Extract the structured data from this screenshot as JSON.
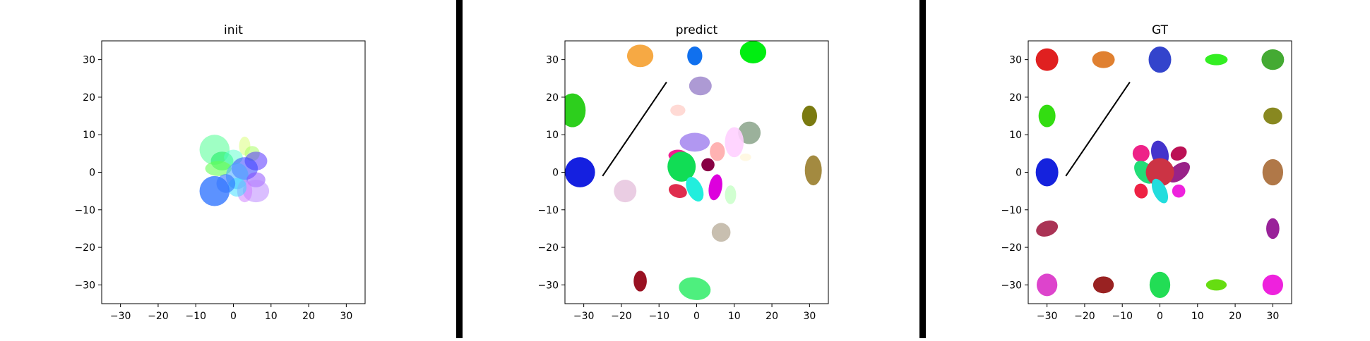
{
  "chart_data": [
    {
      "type": "scatter",
      "title": "init",
      "xlim": [
        -35,
        35
      ],
      "ylim": [
        -35,
        35
      ],
      "xticks": [
        -30,
        -20,
        -10,
        0,
        10,
        20,
        30
      ],
      "yticks": [
        -30,
        -20,
        -10,
        0,
        10,
        20,
        30
      ],
      "grid": false,
      "ellipses": [
        {
          "cx": -5,
          "cy": 6,
          "w": 8,
          "h": 8,
          "angle": 0,
          "color": "#7fffb0",
          "alpha": 0.75
        },
        {
          "cx": -3,
          "cy": 3,
          "w": 6,
          "h": 5,
          "angle": 0,
          "color": "#22ee66",
          "alpha": 0.6
        },
        {
          "cx": -4,
          "cy": 1,
          "w": 7,
          "h": 4,
          "angle": 0,
          "color": "#66ff55",
          "alpha": 0.6
        },
        {
          "cx": 3,
          "cy": 7,
          "w": 3,
          "h": 5,
          "angle": 0,
          "color": "#ddff88",
          "alpha": 0.6
        },
        {
          "cx": 5,
          "cy": 5,
          "w": 4,
          "h": 4,
          "angle": 0,
          "color": "#aaff66",
          "alpha": 0.55
        },
        {
          "cx": 0,
          "cy": 4,
          "w": 5,
          "h": 4,
          "angle": 0,
          "color": "#55ffcc",
          "alpha": 0.5
        },
        {
          "cx": 6,
          "cy": 3,
          "w": 6,
          "h": 5,
          "angle": 0,
          "color": "#5533ff",
          "alpha": 0.55
        },
        {
          "cx": 3,
          "cy": 1,
          "w": 7,
          "h": 6,
          "angle": 0,
          "color": "#3344ff",
          "alpha": 0.55
        },
        {
          "cx": 1,
          "cy": -1,
          "w": 6,
          "h": 7,
          "angle": 0,
          "color": "#44aaff",
          "alpha": 0.55
        },
        {
          "cx": 6,
          "cy": -2,
          "w": 5,
          "h": 4,
          "angle": 0,
          "color": "#8844ff",
          "alpha": 0.5
        },
        {
          "cx": 6,
          "cy": -5,
          "w": 7,
          "h": 6,
          "angle": 0,
          "color": "#bb88ff",
          "alpha": 0.55
        },
        {
          "cx": 3,
          "cy": -5,
          "w": 4,
          "h": 6,
          "angle": 0,
          "color": "#cc77ff",
          "alpha": 0.5
        },
        {
          "cx": 1,
          "cy": -4,
          "w": 5,
          "h": 5,
          "angle": 0,
          "color": "#33ddff",
          "alpha": 0.5
        },
        {
          "cx": -2,
          "cy": -3,
          "w": 5,
          "h": 5,
          "angle": 0,
          "color": "#2266ff",
          "alpha": 0.55
        },
        {
          "cx": -5,
          "cy": -5,
          "w": 8,
          "h": 8,
          "angle": 0,
          "color": "#3377ff",
          "alpha": 0.8
        }
      ],
      "lines": []
    },
    {
      "type": "scatter",
      "title": "predict",
      "xlim": [
        -35,
        35
      ],
      "ylim": [
        -35,
        35
      ],
      "xticks": [
        -30,
        -20,
        -10,
        0,
        10,
        20,
        30
      ],
      "yticks": [
        -30,
        -20,
        -10,
        0,
        10,
        20,
        30
      ],
      "grid": false,
      "ellipses": [
        {
          "cx": -15,
          "cy": 31,
          "w": 7,
          "h": 6,
          "angle": 0,
          "color": "#f5a030",
          "alpha": 0.9
        },
        {
          "cx": -0.5,
          "cy": 31,
          "w": 4,
          "h": 5,
          "angle": 0,
          "color": "#1070ee",
          "alpha": 1
        },
        {
          "cx": 15,
          "cy": 32,
          "w": 7,
          "h": 6,
          "angle": 0,
          "color": "#00ee11",
          "alpha": 1
        },
        {
          "cx": 1,
          "cy": 23,
          "w": 6,
          "h": 5,
          "angle": 0,
          "color": "#a48fcf",
          "alpha": 0.9
        },
        {
          "cx": -33,
          "cy": 16.5,
          "w": 7,
          "h": 9,
          "angle": 0,
          "color": "#22cc11",
          "alpha": 0.95
        },
        {
          "cx": -5,
          "cy": 16.5,
          "w": 4,
          "h": 3,
          "angle": 0,
          "color": "#ffd6d0",
          "alpha": 0.9
        },
        {
          "cx": 30,
          "cy": 15,
          "w": 4,
          "h": 5.5,
          "angle": 0,
          "color": "#7a7a10",
          "alpha": 1
        },
        {
          "cx": 14,
          "cy": 10.5,
          "w": 6,
          "h": 6,
          "angle": 0,
          "color": "#90a890",
          "alpha": 0.9
        },
        {
          "cx": 10,
          "cy": 8,
          "w": 5,
          "h": 8,
          "angle": 0,
          "color": "#ffd0ff",
          "alpha": 0.9
        },
        {
          "cx": -0.5,
          "cy": 8,
          "w": 8,
          "h": 5,
          "angle": 0,
          "color": "#a88cf0",
          "alpha": 0.9
        },
        {
          "cx": 5.5,
          "cy": 5.5,
          "w": 4,
          "h": 5,
          "angle": 0,
          "color": "#ffaaaa",
          "alpha": 0.9
        },
        {
          "cx": 13,
          "cy": 4,
          "w": 3,
          "h": 2,
          "angle": 0,
          "color": "#fff7e0",
          "alpha": 0.9
        },
        {
          "cx": -5,
          "cy": 4.5,
          "w": 5,
          "h": 3,
          "angle": 0,
          "color": "#ee1188",
          "alpha": 0.95
        },
        {
          "cx": -4,
          "cy": 1.5,
          "w": 7.5,
          "h": 8,
          "angle": 0,
          "color": "#11dd55",
          "alpha": 1
        },
        {
          "cx": 3,
          "cy": 2,
          "w": 3.5,
          "h": 3.5,
          "angle": 0,
          "color": "#880044",
          "alpha": 1
        },
        {
          "cx": -31,
          "cy": 0,
          "w": 8,
          "h": 8,
          "angle": 0,
          "color": "#1520e0",
          "alpha": 1
        },
        {
          "cx": 31,
          "cy": 0.5,
          "w": 4.5,
          "h": 8,
          "angle": 0,
          "color": "#a38a40",
          "alpha": 1
        },
        {
          "cx": -19,
          "cy": -5,
          "w": 6,
          "h": 6,
          "angle": 0,
          "color": "#e8c8e0",
          "alpha": 0.9
        },
        {
          "cx": -5,
          "cy": -5,
          "w": 5,
          "h": 3.5,
          "angle": -20,
          "color": "#dd2244",
          "alpha": 0.95
        },
        {
          "cx": -0.5,
          "cy": -4.5,
          "w": 4,
          "h": 7,
          "angle": 25,
          "color": "#22eedd",
          "alpha": 1
        },
        {
          "cx": 5,
          "cy": -4,
          "w": 3.5,
          "h": 7,
          "angle": -10,
          "color": "#dd00dd",
          "alpha": 1
        },
        {
          "cx": 9,
          "cy": -6,
          "w": 3,
          "h": 5,
          "angle": 0,
          "color": "#ccffcc",
          "alpha": 0.9
        },
        {
          "cx": 6.5,
          "cy": -16,
          "w": 5,
          "h": 5,
          "angle": 0,
          "color": "#c8bfb0",
          "alpha": 1
        },
        {
          "cx": -15,
          "cy": -29,
          "w": 3.5,
          "h": 5.5,
          "angle": 0,
          "color": "#991122",
          "alpha": 1
        },
        {
          "cx": -0.5,
          "cy": -31,
          "w": 8.5,
          "h": 6,
          "angle": -10,
          "color": "#44ee77",
          "alpha": 0.95
        }
      ],
      "lines": [
        {
          "x": [
            -25,
            -8
          ],
          "y": [
            -1,
            24
          ],
          "color": "#000000"
        }
      ]
    },
    {
      "type": "scatter",
      "title": "GT",
      "xlim": [
        -35,
        35
      ],
      "ylim": [
        -35,
        35
      ],
      "xticks": [
        -30,
        -20,
        -10,
        0,
        10,
        20,
        30
      ],
      "yticks": [
        -30,
        -20,
        -10,
        0,
        10,
        20,
        30
      ],
      "grid": false,
      "ellipses": [
        {
          "cx": -30,
          "cy": 30,
          "w": 6,
          "h": 6,
          "angle": 0,
          "color": "#e02020",
          "alpha": 1
        },
        {
          "cx": -15,
          "cy": 30,
          "w": 6,
          "h": 4.5,
          "angle": 0,
          "color": "#e08030",
          "alpha": 1
        },
        {
          "cx": 0,
          "cy": 30,
          "w": 6,
          "h": 7,
          "angle": 0,
          "color": "#3344cc",
          "alpha": 1
        },
        {
          "cx": 15,
          "cy": 30,
          "w": 6,
          "h": 3,
          "angle": 0,
          "color": "#33ee22",
          "alpha": 1
        },
        {
          "cx": 30,
          "cy": 30,
          "w": 6,
          "h": 5.5,
          "angle": 0,
          "color": "#44aa33",
          "alpha": 1
        },
        {
          "cx": -30,
          "cy": 15,
          "w": 4.5,
          "h": 6,
          "angle": 0,
          "color": "#33dd11",
          "alpha": 1
        },
        {
          "cx": 30,
          "cy": 15,
          "w": 5,
          "h": 4.5,
          "angle": 0,
          "color": "#888820",
          "alpha": 1
        },
        {
          "cx": -30,
          "cy": 0,
          "w": 6,
          "h": 7.5,
          "angle": 0,
          "color": "#1522dd",
          "alpha": 1
        },
        {
          "cx": 30,
          "cy": 0,
          "w": 5.5,
          "h": 7,
          "angle": 0,
          "color": "#b07848",
          "alpha": 1
        },
        {
          "cx": -30,
          "cy": -15,
          "w": 6,
          "h": 4,
          "angle": 20,
          "color": "#aa3355",
          "alpha": 1
        },
        {
          "cx": 30,
          "cy": -15,
          "w": 3.5,
          "h": 5.5,
          "angle": 0,
          "color": "#992299",
          "alpha": 1
        },
        {
          "cx": -30,
          "cy": -30,
          "w": 5.5,
          "h": 6,
          "angle": 0,
          "color": "#dd44cc",
          "alpha": 1
        },
        {
          "cx": -15,
          "cy": -30,
          "w": 5.5,
          "h": 4.5,
          "angle": 0,
          "color": "#992222",
          "alpha": 1
        },
        {
          "cx": 0,
          "cy": -30,
          "w": 5.5,
          "h": 7,
          "angle": 0,
          "color": "#22dd55",
          "alpha": 1
        },
        {
          "cx": 15,
          "cy": -30,
          "w": 5.5,
          "h": 3,
          "angle": 0,
          "color": "#66dd11",
          "alpha": 1
        },
        {
          "cx": 30,
          "cy": -30,
          "w": 5.5,
          "h": 5.5,
          "angle": 0,
          "color": "#ee22dd",
          "alpha": 1
        },
        {
          "cx": -5,
          "cy": 5,
          "w": 4.5,
          "h": 4.5,
          "angle": 0,
          "color": "#ee2288",
          "alpha": 1
        },
        {
          "cx": 0,
          "cy": 5,
          "w": 4.5,
          "h": 7,
          "angle": 15,
          "color": "#4433cc",
          "alpha": 1
        },
        {
          "cx": 5,
          "cy": 5,
          "w": 4.5,
          "h": 3.5,
          "angle": 30,
          "color": "#bb1155",
          "alpha": 1
        },
        {
          "cx": -4,
          "cy": 0,
          "w": 4.5,
          "h": 7,
          "angle": 40,
          "color": "#22dd77",
          "alpha": 1
        },
        {
          "cx": 5,
          "cy": 0,
          "w": 4,
          "h": 7,
          "angle": -50,
          "color": "#992288",
          "alpha": 1
        },
        {
          "cx": 0,
          "cy": 0,
          "w": 7.5,
          "h": 7.5,
          "angle": 0,
          "color": "#cc3344",
          "alpha": 1
        },
        {
          "cx": -5,
          "cy": -5,
          "w": 3.5,
          "h": 4,
          "angle": 20,
          "color": "#ee2244",
          "alpha": 1
        },
        {
          "cx": 0,
          "cy": -5,
          "w": 3.5,
          "h": 7,
          "angle": 25,
          "color": "#22dddd",
          "alpha": 1
        },
        {
          "cx": 5,
          "cy": -5,
          "w": 3.5,
          "h": 3.5,
          "angle": 0,
          "color": "#ee22dd",
          "alpha": 1
        }
      ],
      "lines": [
        {
          "x": [
            -25,
            -8
          ],
          "y": [
            -1,
            24
          ],
          "color": "#000000"
        }
      ]
    }
  ]
}
